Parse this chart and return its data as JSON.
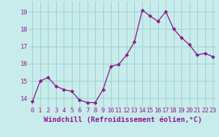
{
  "x": [
    0,
    1,
    2,
    3,
    4,
    5,
    6,
    7,
    8,
    9,
    10,
    11,
    12,
    13,
    14,
    15,
    16,
    17,
    18,
    19,
    20,
    21,
    22,
    23
  ],
  "y": [
    13.8,
    15.0,
    15.2,
    14.7,
    14.5,
    14.4,
    13.9,
    13.75,
    13.75,
    14.5,
    15.85,
    15.95,
    16.5,
    17.25,
    19.1,
    18.75,
    18.45,
    19.0,
    18.0,
    17.5,
    17.1,
    16.5,
    16.6,
    16.4
  ],
  "line_color": "#8b1a8b",
  "marker": "D",
  "marker_size": 2.5,
  "bg_color": "#c8ecec",
  "grid_color": "#9dcece",
  "xlabel": "Windchill (Refroidissement éolien,°C)",
  "ylim": [
    13.5,
    19.6
  ],
  "yticks": [
    14,
    15,
    16,
    17,
    18,
    19
  ],
  "xticks": [
    0,
    1,
    2,
    3,
    4,
    5,
    6,
    7,
    8,
    9,
    10,
    11,
    12,
    13,
    14,
    15,
    16,
    17,
    18,
    19,
    20,
    21,
    22,
    23
  ],
  "tick_fontsize": 6.5,
  "xlabel_fontsize": 7.5,
  "line_width": 1.0
}
